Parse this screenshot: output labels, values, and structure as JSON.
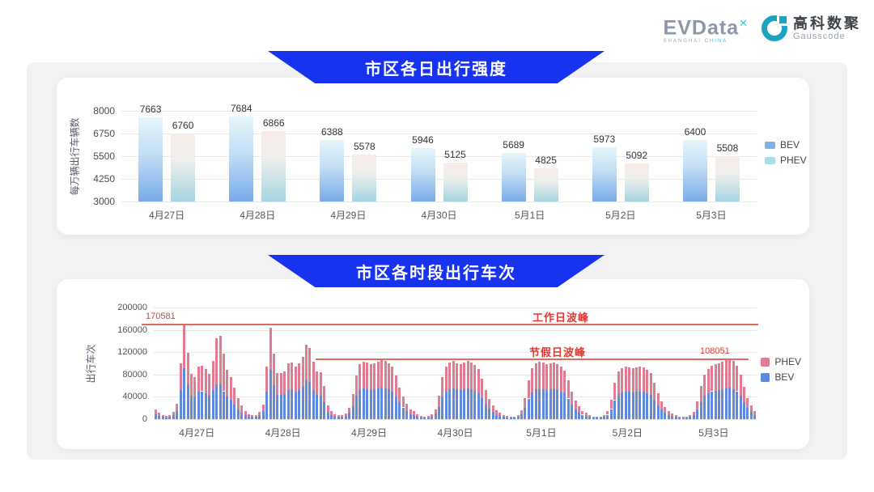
{
  "header": {
    "evdata_text": "EVData",
    "evdata_sup": "✕",
    "evdata_sub_1": "SHANGHAI",
    "evdata_sub_2": "CHINA",
    "partner_name": "高科数聚",
    "partner_sub": "Gausscode"
  },
  "colors": {
    "banner_blue": "#1733f0",
    "bev_bar_top": "#e6f6fc",
    "bev_bar_bottom": "#78abe9",
    "phev_bar_top": "#f8ece8",
    "phev_bar_bottom": "#a5d5e2",
    "stacked_bev": "#6189dd",
    "stacked_phev": "#e17b92",
    "annotation_red": "#e0392f",
    "annotation_line": "#e4695f",
    "panel_gray": "#f2f2f4"
  },
  "chart_data": [
    {
      "type": "bar",
      "title": "市区各日出行强度",
      "ylabel": "每万辆出行车辆数",
      "ylim": [
        3000,
        8000
      ],
      "yticks": [
        3000,
        4250,
        5500,
        6750,
        8000
      ],
      "grid": true,
      "legend_position": "right",
      "categories": [
        "4月27日",
        "4月28日",
        "4月29日",
        "4月30日",
        "5月1日",
        "5月2日",
        "5月3日"
      ],
      "series": [
        {
          "name": "BEV",
          "values": [
            7663,
            7684,
            6388,
            5946,
            5689,
            5973,
            6400
          ]
        },
        {
          "name": "PHEV",
          "values": [
            6760,
            6866,
            5578,
            5125,
            4825,
            5092,
            5508
          ]
        }
      ]
    },
    {
      "type": "stacked-bar",
      "title": "市区各时段出行车次",
      "ylabel": "出行车次",
      "ylim": [
        0,
        200000
      ],
      "yticks": [
        0,
        40000,
        80000,
        120000,
        160000,
        200000
      ],
      "grid": true,
      "legend_position": "right",
      "hours_per_day": 24,
      "categories": [
        "4月27日",
        "4月28日",
        "4月29日",
        "4月30日",
        "5月1日",
        "5月2日",
        "5月3日"
      ],
      "annotations": [
        {
          "name": "workday-peak",
          "label": "工作日波峰",
          "value": 170581,
          "value_label": "170581"
        },
        {
          "name": "holiday-peak",
          "label": "节假日波峰",
          "value": 108051,
          "value_label": "108051"
        }
      ],
      "series": [
        {
          "name": "BEV",
          "values": [
            9000,
            6000,
            4000,
            3000,
            4000,
            7000,
            15000,
            52000,
            91000,
            62000,
            42000,
            40000,
            50000,
            50000,
            47000,
            42000,
            52000,
            63000,
            62000,
            50000,
            40000,
            35000,
            26000,
            18000,
            12000,
            7000,
            5000,
            4000,
            4000,
            7000,
            14000,
            50000,
            88000,
            61000,
            43000,
            43000,
            45000,
            52000,
            53000,
            50000,
            52000,
            58000,
            70000,
            67000,
            52000,
            44000,
            42000,
            30000,
            12000,
            7000,
            5000,
            4000,
            4000,
            5000,
            11000,
            24000,
            42000,
            52000,
            55000,
            54000,
            52000,
            53000,
            55000,
            56000,
            55000,
            53000,
            50000,
            41000,
            30000,
            21000,
            15000,
            9000,
            7000,
            5000,
            3000,
            3000,
            3000,
            5000,
            10000,
            22000,
            40000,
            50000,
            54000,
            55000,
            53000,
            52000,
            53000,
            55000,
            54000,
            51000,
            47000,
            38000,
            27000,
            19000,
            13000,
            8000,
            6000,
            4000,
            3000,
            3000,
            3000,
            4000,
            9000,
            20000,
            37000,
            48000,
            53000,
            54000,
            53000,
            52000,
            53000,
            54000,
            52000,
            49000,
            46000,
            37000,
            26000,
            18000,
            12000,
            8000,
            6000,
            4000,
            3000,
            3000,
            3000,
            4000,
            8000,
            18000,
            34000,
            45000,
            48000,
            50000,
            49000,
            48000,
            49000,
            50000,
            49000,
            47000,
            44000,
            35000,
            25000,
            17000,
            12000,
            7000,
            5000,
            4000,
            3000,
            2000,
            3000,
            4000,
            7000,
            17000,
            31000,
            42000,
            47000,
            50000,
            51000,
            52000,
            54000,
            55000,
            56000,
            54000,
            50000,
            42000,
            30000,
            20000,
            13000,
            7000
          ]
        },
        {
          "name": "PHEV",
          "values": [
            9000,
            6000,
            4000,
            3000,
            3000,
            6000,
            13000,
            48000,
            79581,
            57000,
            39000,
            36000,
            45000,
            46000,
            43000,
            39000,
            53000,
            82000,
            88000,
            68000,
            49000,
            41000,
            30000,
            20000,
            12000,
            7000,
            4000,
            3000,
            3000,
            6000,
            12000,
            45000,
            76000,
            56000,
            39000,
            39000,
            41000,
            48000,
            48000,
            45000,
            48000,
            54000,
            64000,
            61000,
            51000,
            42000,
            42000,
            30000,
            12000,
            7000,
            4000,
            3000,
            3000,
            5000,
            9000,
            21000,
            36000,
            46000,
            48000,
            47000,
            46000,
            47000,
            48000,
            50000,
            49000,
            47000,
            45000,
            37000,
            27000,
            19000,
            13000,
            9000,
            7000,
            4000,
            3000,
            2000,
            3000,
            4000,
            8000,
            20000,
            35000,
            45000,
            48000,
            49000,
            47000,
            46000,
            48000,
            49000,
            48000,
            46000,
            43000,
            34000,
            25000,
            17000,
            12000,
            8000,
            6000,
            4000,
            3000,
            2000,
            2000,
            4000,
            7000,
            18000,
            33000,
            44000,
            47000,
            49000,
            48000,
            46000,
            47000,
            48000,
            47000,
            45000,
            41000,
            33000,
            24000,
            16000,
            11000,
            7000,
            5000,
            3000,
            2000,
            2000,
            2000,
            4000,
            7000,
            17000,
            31000,
            40000,
            44000,
            45000,
            44000,
            43000,
            44000,
            45000,
            44000,
            42000,
            39000,
            31000,
            22000,
            15000,
            10000,
            7000,
            5000,
            3000,
            2000,
            2000,
            2000,
            4000,
            6000,
            15000,
            29000,
            38000,
            43000,
            46000,
            47000,
            48000,
            49000,
            51000,
            52051,
            50000,
            46000,
            38000,
            28000,
            18000,
            12000,
            7000
          ]
        }
      ]
    }
  ]
}
